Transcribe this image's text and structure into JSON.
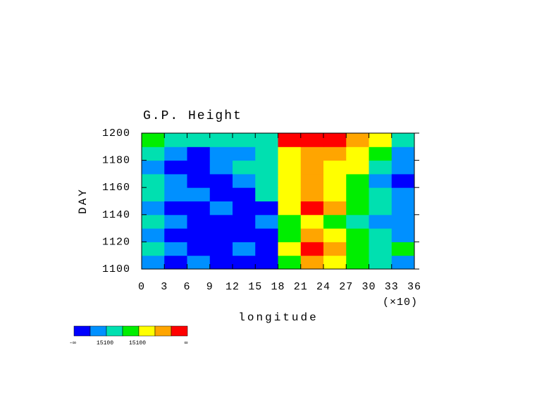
{
  "chart_data": {
    "type": "contour",
    "title": "G.P. Height",
    "xlabel": "longitude",
    "ylabel": "DAY",
    "x_scale_label": "(×10)",
    "xlim": [
      0,
      36
    ],
    "xticks": [
      0,
      3,
      6,
      9,
      12,
      15,
      18,
      21,
      24,
      27,
      30,
      33,
      36
    ],
    "ylim": [
      1100,
      1200
    ],
    "yticks": [
      1100,
      1120,
      1140,
      1160,
      1180,
      1200
    ],
    "x": [
      1.5,
      4.5,
      7.5,
      10.5,
      13.5,
      16.5,
      19.5,
      22.5,
      25.5,
      28.5,
      31.5,
      34.5
    ],
    "y": [
      1105,
      1115,
      1125,
      1135,
      1145,
      1155,
      1165,
      1175,
      1185,
      1195
    ],
    "z": [
      [
        1,
        0,
        1,
        0,
        0,
        0,
        3,
        5,
        4,
        3,
        2,
        1
      ],
      [
        2,
        1,
        0,
        0,
        1,
        0,
        4,
        6,
        5,
        3,
        2,
        3
      ],
      [
        1,
        0,
        0,
        0,
        0,
        0,
        3,
        5,
        4,
        3,
        2,
        1
      ],
      [
        2,
        1,
        0,
        0,
        0,
        1,
        3,
        4,
        3,
        2,
        1,
        1
      ],
      [
        1,
        0,
        0,
        1,
        0,
        0,
        4,
        6,
        5,
        3,
        2,
        1
      ],
      [
        2,
        1,
        1,
        0,
        0,
        2,
        4,
        5,
        4,
        3,
        2,
        1
      ],
      [
        2,
        1,
        0,
        0,
        1,
        2,
        4,
        5,
        4,
        3,
        1,
        0
      ],
      [
        1,
        0,
        0,
        1,
        2,
        2,
        4,
        5,
        4,
        4,
        2,
        1
      ],
      [
        2,
        1,
        0,
        1,
        1,
        2,
        4,
        5,
        5,
        4,
        3,
        1
      ],
      [
        3,
        2,
        2,
        2,
        2,
        2,
        6,
        6,
        6,
        5,
        4,
        2
      ]
    ],
    "colorbar": {
      "colors": [
        "#0000ff",
        "#0090ff",
        "#00e0b0",
        "#00ee00",
        "#ffff00",
        "#ffa500",
        "#ff0000"
      ],
      "labels": [
        "-∞",
        "15100",
        "15100",
        "∞"
      ]
    }
  }
}
